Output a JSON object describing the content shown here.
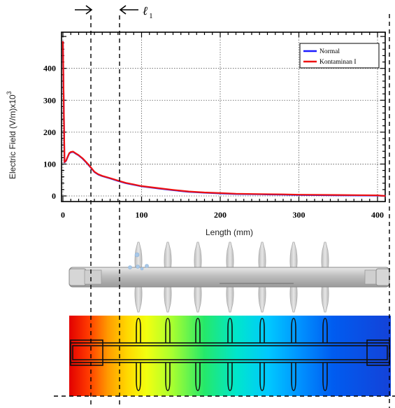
{
  "chart_data": {
    "type": "line",
    "title": "",
    "xlabel": "Length (mm)",
    "ylabel": "Electric Field (V/m)x10",
    "ylabel_exponent": "3",
    "xlim": [
      0,
      415
    ],
    "ylim": [
      -8,
      520
    ],
    "x_ticks": [
      0,
      100,
      200,
      300,
      400
    ],
    "y_ticks": [
      0,
      100,
      200,
      300,
      400
    ],
    "grid": "dotted",
    "legend_position": "top-right",
    "series": [
      {
        "name": "Normal",
        "color": "#1a1aff",
        "x": [
          0,
          2,
          4,
          6,
          8,
          10,
          13,
          16,
          20,
          25,
          30,
          35,
          40,
          45,
          50,
          60,
          70,
          80,
          90,
          100,
          120,
          140,
          160,
          180,
          200,
          220,
          250,
          280,
          300,
          350,
          400,
          410
        ],
        "y": [
          485,
          105,
          110,
          122,
          133,
          137,
          138,
          133,
          127,
          117,
          104,
          90,
          75,
          67,
          62,
          55,
          47,
          40,
          35,
          30,
          24,
          18,
          13,
          10,
          8,
          6,
          5,
          4,
          3,
          2,
          1,
          0
        ]
      },
      {
        "name": "Kontaminan I",
        "color": "#ee1111",
        "x": [
          0,
          2,
          4,
          6,
          8,
          10,
          13,
          16,
          20,
          25,
          30,
          35,
          40,
          45,
          50,
          60,
          70,
          80,
          90,
          100,
          120,
          140,
          160,
          180,
          200,
          220,
          250,
          280,
          300,
          350,
          400,
          410
        ],
        "y": [
          485,
          106,
          111,
          123,
          134,
          138,
          139,
          134,
          128,
          118,
          105,
          91,
          76,
          68,
          63,
          56,
          48,
          41,
          36,
          31,
          25,
          19,
          14,
          11,
          9,
          7,
          6,
          5,
          4,
          3,
          2,
          0
        ]
      }
    ]
  },
  "annotation": {
    "length_label": "ℓ",
    "length_subscript": "1"
  },
  "colors": {
    "axis": "#000000",
    "insulator_body": "#c4c4c4",
    "shed": "#d2d2d2",
    "drop": "#a8c8e8"
  }
}
